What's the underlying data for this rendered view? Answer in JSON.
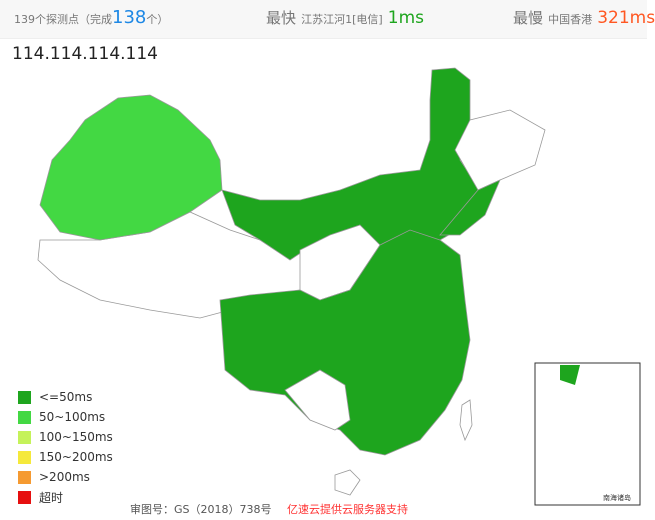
{
  "header": {
    "probes": "139个探测点（完成",
    "completed": "138",
    "probes_suffix": "个）",
    "fastest_label": "最快",
    "fastest_loc": "江苏江河1[电信]",
    "fastest_value": "1ms",
    "slowest_label": "最慢",
    "slowest_loc": "中国香港",
    "slowest_value": "321ms"
  },
  "target": "114.114.114.114",
  "colors": {
    "le50": "#1ea51e",
    "50_100": "#43d843",
    "100_150": "#c5f25a",
    "150_200": "#f5e93b",
    "gt200": "#f59a31",
    "timeout": "#e60f0f",
    "completed": "#1e88e5",
    "fastest": "#1ea51e",
    "slowest": "#ff5722"
  },
  "legend": [
    {
      "label": "<=50ms",
      "color": "#1ea51e"
    },
    {
      "label": "50~100ms",
      "color": "#43d843"
    },
    {
      "label": "100~150ms",
      "color": "#c5f25a"
    },
    {
      "label": "150~200ms",
      "color": "#f5e93b"
    },
    {
      "label": ">200ms",
      "color": "#f59a31"
    },
    {
      "label": "超时",
      "color": "#e60f0f"
    }
  ],
  "footer": {
    "approval": "审图号：GS（2018）738号",
    "sponsor": "亿速云提供云服务器支持"
  },
  "inset_label": "南海诸岛"
}
